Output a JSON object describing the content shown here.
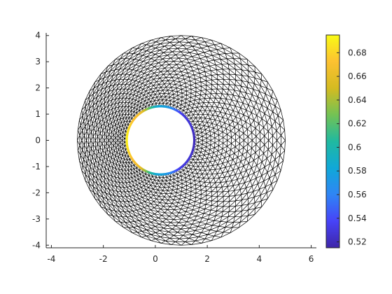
{
  "chart_data": {
    "type": "mesh",
    "title": "",
    "xlabel": "",
    "ylabel": "",
    "xlim": [
      -4.2,
      6.2
    ],
    "ylim": [
      -4.1,
      4.1
    ],
    "x_ticks": [
      -4,
      -2,
      0,
      2,
      4,
      6
    ],
    "y_ticks": [
      -4,
      -3,
      -2,
      -1,
      0,
      1,
      2,
      3,
      4
    ],
    "domain": {
      "outer_circle": {
        "center": [
          1.0,
          0.0
        ],
        "radius": 4.0
      },
      "inner_circle": {
        "center": [
          0.2,
          0.0
        ],
        "radius": 1.3
      }
    },
    "mesh": {
      "rings": 22,
      "segments": 64,
      "edge_color": "#000000"
    },
    "boundary_values": {
      "description": "Scalar value on inner circle boundary",
      "angles_deg": [
        0,
        45,
        90,
        135,
        180,
        225,
        270,
        315,
        360
      ],
      "values": [
        0.52,
        0.53,
        0.58,
        0.67,
        0.69,
        0.67,
        0.58,
        0.53,
        0.52
      ]
    },
    "colorbar": {
      "colormap": "parula",
      "range": [
        0.515,
        0.695
      ],
      "ticks": [
        0.52,
        0.54,
        0.56,
        0.58,
        0.6,
        0.62,
        0.64,
        0.66,
        0.68
      ],
      "tick_labels": [
        "0.52",
        "0.54",
        "0.56",
        "0.58",
        "0.6",
        "0.62",
        "0.64",
        "0.66",
        "0.68"
      ],
      "colors": [
        "#3e26a8",
        "#4743f8",
        "#2f85f5",
        "#10a8d8",
        "#20b9a0",
        "#73c254",
        "#d4bb21",
        "#fdc131",
        "#f9fb15"
      ]
    }
  }
}
